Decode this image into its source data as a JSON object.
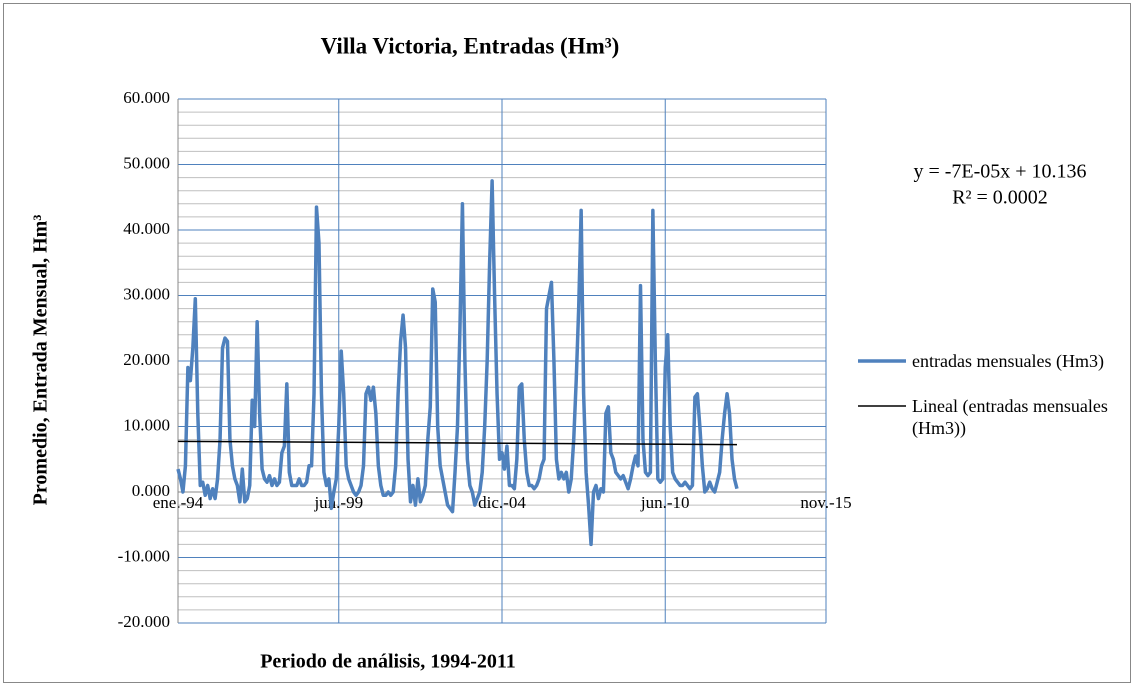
{
  "chart_data": {
    "type": "line",
    "title": "Villa Victoria,  Entradas (Hm³)",
    "ylabel": "Promedio, Entrada Mensual, Hm³",
    "xlabel": "Periodo de análisis, 1994-2011",
    "annotations": [
      "y = -7E-05x + 10.136",
      "R² = 0.0002"
    ],
    "xlim": [
      "1994-01",
      "2015-11"
    ],
    "xticks": [
      {
        "value": "1994-01",
        "label": "ene.-94"
      },
      {
        "value": "1999-06",
        "label": "jun.-99"
      },
      {
        "value": "2004-12",
        "label": "dic.-04"
      },
      {
        "value": "2010-06",
        "label": "jun.-10"
      },
      {
        "value": "2015-11",
        "label": "nov.-15"
      }
    ],
    "ylim": [
      -20,
      60
    ],
    "yticks": [
      {
        "value": -20,
        "label": "-20.000"
      },
      {
        "value": -10,
        "label": "-10.000"
      },
      {
        "value": 0,
        "label": "0.000"
      },
      {
        "value": 10,
        "label": "10.000"
      },
      {
        "value": 20,
        "label": "20.000"
      },
      {
        "value": 30,
        "label": "30.000"
      },
      {
        "value": 40,
        "label": "40.000"
      },
      {
        "value": 50,
        "label": "50.000"
      },
      {
        "value": 60,
        "label": "60.000"
      }
    ],
    "yminorticks": [
      -18,
      -16,
      -14,
      -12,
      -8,
      -6,
      -4,
      -2,
      2,
      4,
      6,
      8,
      12,
      14,
      16,
      18,
      22,
      24,
      26,
      28,
      32,
      34,
      36,
      38,
      42,
      44,
      46,
      48,
      52,
      54,
      56,
      58
    ],
    "grid": true,
    "legend": "right",
    "series": [
      {
        "name": "entradas mensuales (Hm3)",
        "color": "#4f81bd",
        "x": [
          "1994-01",
          "1994-02",
          "1994-03",
          "1994-04",
          "1994-05",
          "1994-06",
          "1994-07",
          "1994-08",
          "1994-09",
          "1994-10",
          "1994-11",
          "1994-12",
          "1995-01",
          "1995-02",
          "1995-03",
          "1995-04",
          "1995-05",
          "1995-06",
          "1995-07",
          "1995-08",
          "1995-09",
          "1995-10",
          "1995-11",
          "1995-12",
          "1996-01",
          "1996-02",
          "1996-03",
          "1996-04",
          "1996-05",
          "1996-06",
          "1996-07",
          "1996-08",
          "1996-09",
          "1996-10",
          "1996-11",
          "1996-12",
          "1997-01",
          "1997-02",
          "1997-03",
          "1997-04",
          "1997-05",
          "1997-06",
          "1997-07",
          "1997-08",
          "1997-09",
          "1997-10",
          "1997-11",
          "1997-12",
          "1998-01",
          "1998-02",
          "1998-03",
          "1998-04",
          "1998-05",
          "1998-06",
          "1998-07",
          "1998-08",
          "1998-09",
          "1998-10",
          "1998-11",
          "1998-12",
          "1999-01",
          "1999-02",
          "1999-03",
          "1999-04",
          "1999-05",
          "1999-06",
          "1999-07",
          "1999-08",
          "1999-09",
          "1999-10",
          "1999-11",
          "1999-12",
          "2000-01",
          "2000-02",
          "2000-03",
          "2000-04",
          "2000-05",
          "2000-06",
          "2000-07",
          "2000-08",
          "2000-09",
          "2000-10",
          "2000-11",
          "2000-12",
          "2001-01",
          "2001-02",
          "2001-03",
          "2001-04",
          "2001-05",
          "2001-06",
          "2001-07",
          "2001-08",
          "2001-09",
          "2001-10",
          "2001-11",
          "2001-12",
          "2002-01",
          "2002-02",
          "2002-03",
          "2002-04",
          "2002-05",
          "2002-06",
          "2002-07",
          "2002-08",
          "2002-09",
          "2002-10",
          "2002-11",
          "2002-12",
          "2003-01",
          "2003-02",
          "2003-03",
          "2003-04",
          "2003-05",
          "2003-06",
          "2003-07",
          "2003-08",
          "2003-09",
          "2003-10",
          "2003-11",
          "2003-12",
          "2004-01",
          "2004-02",
          "2004-03",
          "2004-04",
          "2004-05",
          "2004-06",
          "2004-07",
          "2004-08",
          "2004-09",
          "2004-10",
          "2004-11",
          "2004-12",
          "2005-01",
          "2005-02",
          "2005-03",
          "2005-04",
          "2005-05",
          "2005-06",
          "2005-07",
          "2005-08",
          "2005-09",
          "2005-10",
          "2005-11",
          "2005-12",
          "2006-01",
          "2006-02",
          "2006-03",
          "2006-04",
          "2006-05",
          "2006-06",
          "2006-07",
          "2006-08",
          "2006-09",
          "2006-10",
          "2006-11",
          "2006-12",
          "2007-01",
          "2007-02",
          "2007-03",
          "2007-04",
          "2007-05",
          "2007-06",
          "2007-07",
          "2007-08",
          "2007-09",
          "2007-10",
          "2007-11",
          "2007-12",
          "2008-01",
          "2008-02",
          "2008-03",
          "2008-04",
          "2008-05",
          "2008-06",
          "2008-07",
          "2008-08",
          "2008-09",
          "2008-10",
          "2008-11",
          "2008-12",
          "2009-01",
          "2009-02",
          "2009-03",
          "2009-04",
          "2009-05",
          "2009-06",
          "2009-07",
          "2009-08",
          "2009-09",
          "2009-10",
          "2009-11",
          "2009-12",
          "2010-01",
          "2010-02",
          "2010-03",
          "2010-04",
          "2010-05",
          "2010-06",
          "2010-07",
          "2010-08",
          "2010-09",
          "2010-10",
          "2010-11",
          "2010-12",
          "2011-01",
          "2011-02",
          "2011-03",
          "2011-04",
          "2011-05",
          "2011-06",
          "2011-07",
          "2011-08",
          "2011-09",
          "2011-10",
          "2011-11",
          "2011-12",
          "2012-01",
          "2012-02",
          "2012-03",
          "2012-04",
          "2012-05",
          "2012-06",
          "2012-07",
          "2012-08",
          "2012-09",
          "2012-10",
          "2012-11"
        ],
        "values": [
          3.5,
          2,
          0,
          4,
          19,
          17,
          22,
          29.5,
          12,
          1,
          1.5,
          -0.5,
          1,
          -1,
          0.5,
          -1,
          2,
          8,
          22,
          23.5,
          23,
          8,
          4,
          2,
          1,
          -1.5,
          3.5,
          -1.5,
          -1,
          1,
          14,
          10,
          26,
          12,
          3.5,
          2,
          1.5,
          2.5,
          1,
          2,
          1,
          1.5,
          6,
          7,
          16.5,
          3,
          1,
          1,
          1,
          2,
          1,
          1,
          1.5,
          4,
          4,
          15,
          43.5,
          38,
          15,
          3,
          1,
          2,
          -2.5,
          0,
          2,
          10,
          21.5,
          15,
          4,
          2,
          1,
          0,
          -0.5,
          0,
          1,
          4,
          15,
          16,
          14,
          16,
          12,
          4,
          1,
          -0.5,
          -0.5,
          0,
          -0.5,
          0,
          4,
          15,
          23,
          27,
          22,
          5,
          -1.5,
          1,
          -2,
          2,
          -1.5,
          -0.5,
          1,
          8,
          13,
          31,
          29,
          10,
          4,
          2,
          0,
          -2,
          -2.5,
          -3,
          3,
          10,
          25,
          44,
          20,
          5,
          1,
          0,
          -2,
          -1,
          0,
          3,
          10,
          20,
          35,
          47.5,
          30,
          15,
          5,
          6,
          3.5,
          7,
          1,
          1,
          0.5,
          5,
          16,
          16.5,
          8,
          3,
          1,
          1,
          0.5,
          1,
          2,
          4,
          5,
          28,
          30,
          32,
          20,
          5,
          2,
          3,
          2,
          3,
          0,
          2,
          8,
          17,
          28,
          43,
          15,
          3,
          -2,
          -8,
          0,
          1,
          -1,
          0.5,
          0,
          12,
          13,
          6,
          5,
          3,
          2.5,
          2,
          2.5,
          1.5,
          0.5,
          2,
          4,
          5.5,
          4,
          31.5,
          8,
          3,
          2.5,
          3,
          43,
          20,
          2,
          1.5,
          2,
          19,
          24,
          10,
          3,
          2,
          1.5,
          1,
          1,
          1.5,
          1,
          0.5,
          1,
          14.5,
          15,
          10,
          4,
          0,
          0.5,
          1.5,
          0.5,
          0,
          1.5,
          3,
          8,
          12,
          15,
          12,
          5,
          2,
          0.5
        ]
      },
      {
        "name": "Lineal (entradas mensuales (Hm3))",
        "color": "#000000",
        "x": [
          "1994-01",
          "2012-11"
        ],
        "values": [
          7.73,
          7.24
        ]
      }
    ]
  }
}
